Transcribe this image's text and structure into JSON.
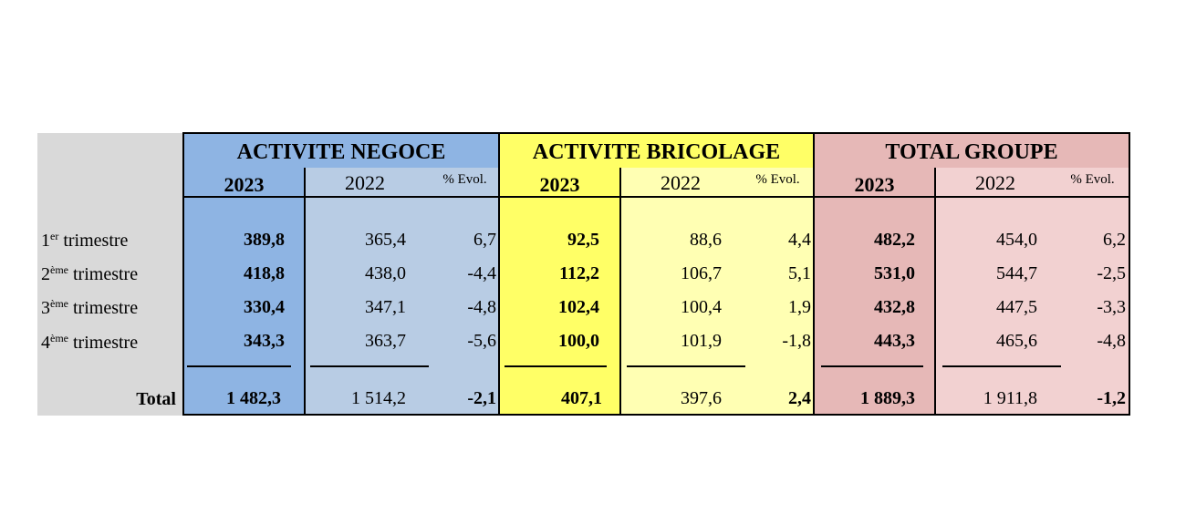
{
  "sections": [
    {
      "title": "ACTIVITE NEGOCE",
      "years": [
        "2023",
        "2022"
      ],
      "evol_label": "% Evol."
    },
    {
      "title": "ACTIVITE BRICOLAGE",
      "years": [
        "2023",
        "2022"
      ],
      "evol_label": "% Evol."
    },
    {
      "title": "TOTAL GROUPE",
      "years": [
        "2023",
        "2022"
      ],
      "evol_label": "% Evol."
    }
  ],
  "rows": [
    {
      "num": "1",
      "sup": "er",
      "label": "trimestre",
      "values": [
        "389,8",
        "365,4",
        "6,7",
        "92,5",
        "88,6",
        "4,4",
        "482,2",
        "454,0",
        "6,2"
      ]
    },
    {
      "num": "2",
      "sup": "ème",
      "label": "trimestre",
      "values": [
        "418,8",
        "438,0",
        "-4,4",
        "112,2",
        "106,7",
        "5,1",
        "531,0",
        "544,7",
        "-2,5"
      ]
    },
    {
      "num": "3",
      "sup": "ème",
      "label": "trimestre",
      "values": [
        "330,4",
        "347,1",
        "-4,8",
        "102,4",
        "100,4",
        "1,9",
        "432,8",
        "447,5",
        "-3,3"
      ]
    },
    {
      "num": "4",
      "sup": "ème",
      "label": "trimestre",
      "values": [
        "343,3",
        "363,7",
        "-5,6",
        "100,0",
        "101,9",
        "-1,8",
        "443,3",
        "465,6",
        "-4,8"
      ]
    }
  ],
  "total": {
    "label": "Total",
    "values": [
      "1 482,3",
      "1 514,2",
      "-2,1",
      "407,1",
      "397,6",
      "2,4",
      "1 889,3",
      "1 911,8",
      "-1,2"
    ]
  },
  "colors": {
    "label_bg": "#d9d9d9",
    "negoce_2023": "#8eb4e3",
    "negoce_light": "#b8cce4",
    "brico_2023": "#ffff66",
    "brico_light": "#ffffb3",
    "groupe_2023": "#e6b8b7",
    "groupe_light": "#f2d1d1"
  }
}
